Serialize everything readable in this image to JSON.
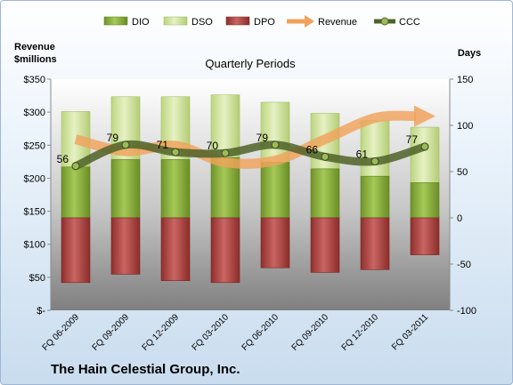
{
  "chart_data": {
    "type": "bar",
    "title": "Quarterly Periods",
    "footer": "The Hain Celestial Group, Inc.",
    "left_axis_label": "Revenue $millions",
    "right_axis_label": "Days",
    "categories": [
      "FQ 06-2009",
      "FQ 09-2009",
      "FQ 12-2009",
      "FQ 03-2010",
      "FQ 06-2010",
      "FQ 09-2010",
      "FQ 12-2010",
      "FQ 03-2011"
    ],
    "right_ylim": [
      -100,
      150
    ],
    "right_ticks": [
      "150",
      "100",
      "50",
      "0",
      "-50",
      "-100"
    ],
    "left_ticks": [
      "$350",
      "$300",
      "$250",
      "$200",
      "$150",
      "$100",
      "$50",
      "$-"
    ],
    "legend_placement": "top",
    "grid": false,
    "series": [
      {
        "name": "DIO",
        "kind": "bar",
        "color": "#8fb23f",
        "values": [
          55,
          63,
          63,
          65,
          60,
          53,
          45,
          38
        ]
      },
      {
        "name": "DSO",
        "kind": "bar",
        "color": "#d6e8a4",
        "values": [
          60,
          68,
          68,
          68,
          65,
          60,
          60,
          60
        ]
      },
      {
        "name": "DPO",
        "kind": "bar",
        "color": "#b84b48",
        "values": [
          -70,
          -61,
          -68,
          -70,
          -54,
          -59,
          -56,
          -40
        ]
      },
      {
        "name": "Revenue",
        "kind": "arrow",
        "color": "#f0a25c",
        "values": [
          85,
          72,
          78,
          60,
          62,
          85,
          108,
          110
        ]
      },
      {
        "name": "CCC",
        "kind": "line",
        "color": "#4f6228",
        "values": [
          56,
          79,
          71,
          70,
          79,
          66,
          61,
          77
        ],
        "labels": [
          "56",
          "79",
          "71",
          "70",
          "79",
          "66",
          "61",
          "77"
        ]
      }
    ]
  }
}
